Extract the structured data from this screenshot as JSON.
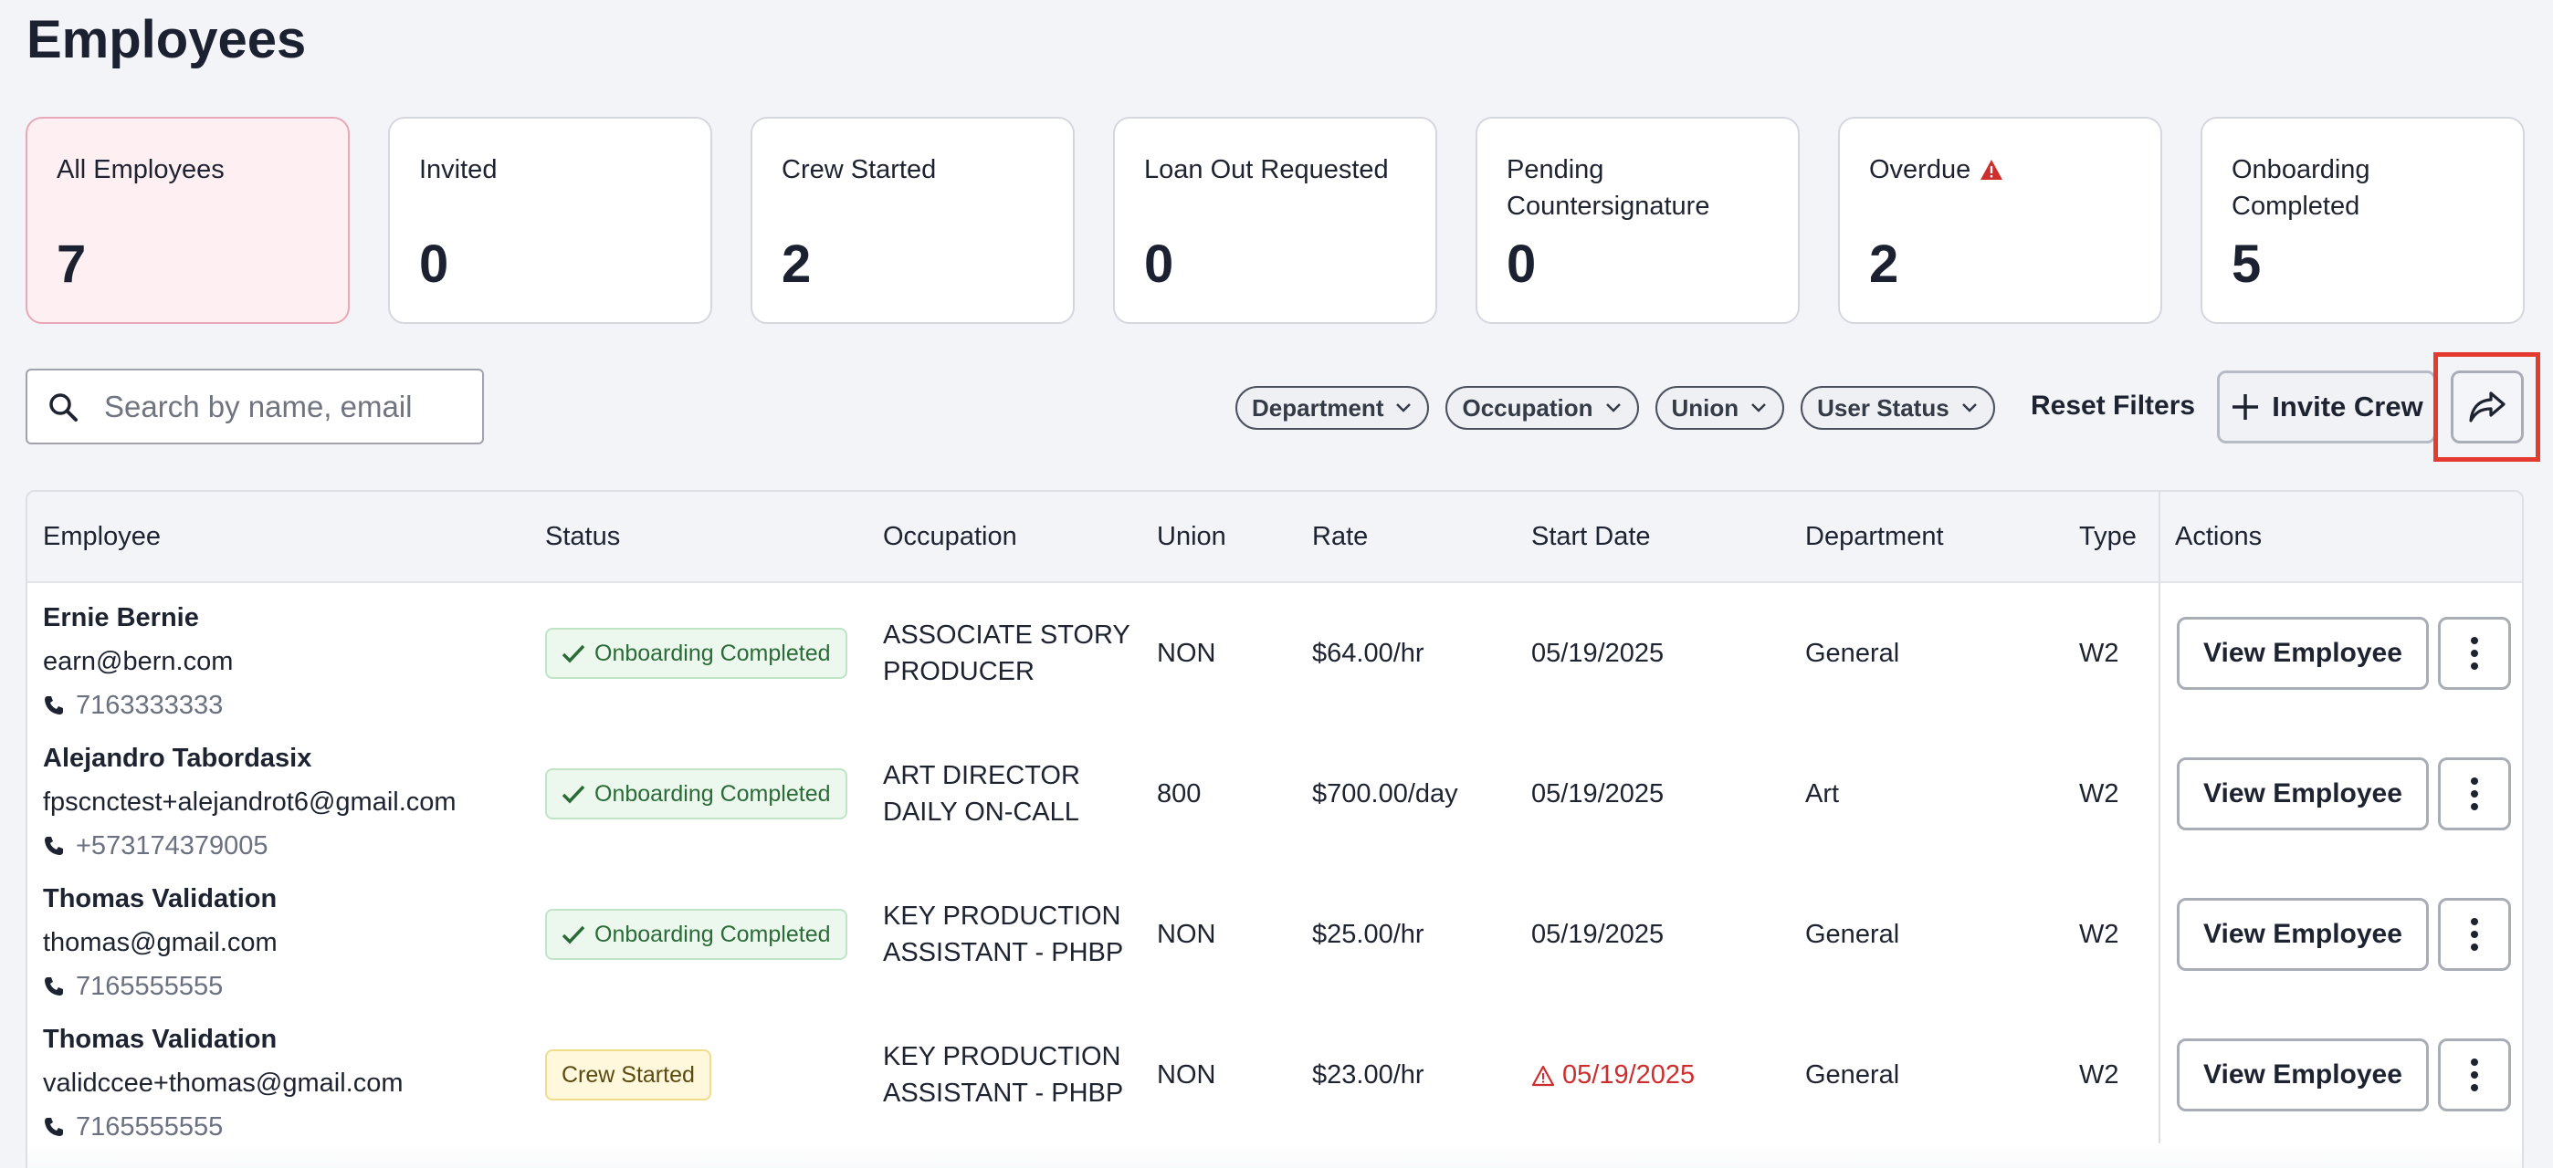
{
  "page": {
    "title": "Employees"
  },
  "cards": [
    {
      "label": "All Employees",
      "count": "7"
    },
    {
      "label": "Invited",
      "count": "0"
    },
    {
      "label": "Crew Started",
      "count": "2"
    },
    {
      "label": "Loan Out Requested",
      "count": "0"
    },
    {
      "label": "Pending Countersignature",
      "count": "0"
    },
    {
      "label": "Overdue",
      "count": "2",
      "icon": "warning-icon"
    },
    {
      "label": "Onboarding Completed",
      "count": "5"
    }
  ],
  "search": {
    "placeholder": "Search by name, email",
    "value": ""
  },
  "filters": [
    "Department",
    "Occupation",
    "Union",
    "User Status"
  ],
  "toolbar": {
    "reset_label": "Reset Filters",
    "invite_label": "Invite Crew",
    "share_icon": "share-icon"
  },
  "table": {
    "headers": [
      "Employee",
      "Status",
      "Occupation",
      "Union",
      "Rate",
      "Start Date",
      "Department",
      "Type",
      "Actions"
    ],
    "rows": [
      {
        "name": "Ernie Bernie",
        "email": "earn@bern.com",
        "phone": "7163333333",
        "status": "Onboarding Completed",
        "occupation": "ASSOCIATE STORY PRODUCER",
        "union": "NON",
        "rate": "$64.00/hr",
        "start_date": "05/19/2025",
        "department": "General",
        "type": "W2",
        "action": "View Employee"
      },
      {
        "name": "Alejandro Tabordasix",
        "email": "fpscnctest+alejandrot6@gmail.com",
        "phone": "+573174379005",
        "status": "Onboarding Completed",
        "occupation": "ART DIRECTOR DAILY ON-CALL",
        "union": "800",
        "rate": "$700.00/day",
        "start_date": "05/19/2025",
        "department": "Art",
        "type": "W2",
        "action": "View Employee"
      },
      {
        "name": "Thomas Validation",
        "email": "thomas@gmail.com",
        "phone": "7165555555",
        "status": "Onboarding Completed",
        "occupation": "KEY PRODUCTION ASSISTANT - PHBP",
        "union": "NON",
        "rate": "$25.00/hr",
        "start_date": "05/19/2025",
        "department": "General",
        "type": "W2",
        "action": "View Employee"
      },
      {
        "name": "Thomas Validation",
        "email": "validccee+thomas@gmail.com",
        "phone": "7165555555",
        "status": "Crew Started",
        "occupation": "KEY PRODUCTION ASSISTANT - PHBP",
        "union": "NON",
        "rate": "$23.00/hr",
        "start_date": "05/19/2025",
        "department": "General",
        "type": "W2",
        "action": "View Employee"
      }
    ]
  },
  "colors": {
    "accent_active_card": "#fdeff2",
    "warning": "#cf2e2e",
    "highlight_box": "#e53a2f"
  }
}
